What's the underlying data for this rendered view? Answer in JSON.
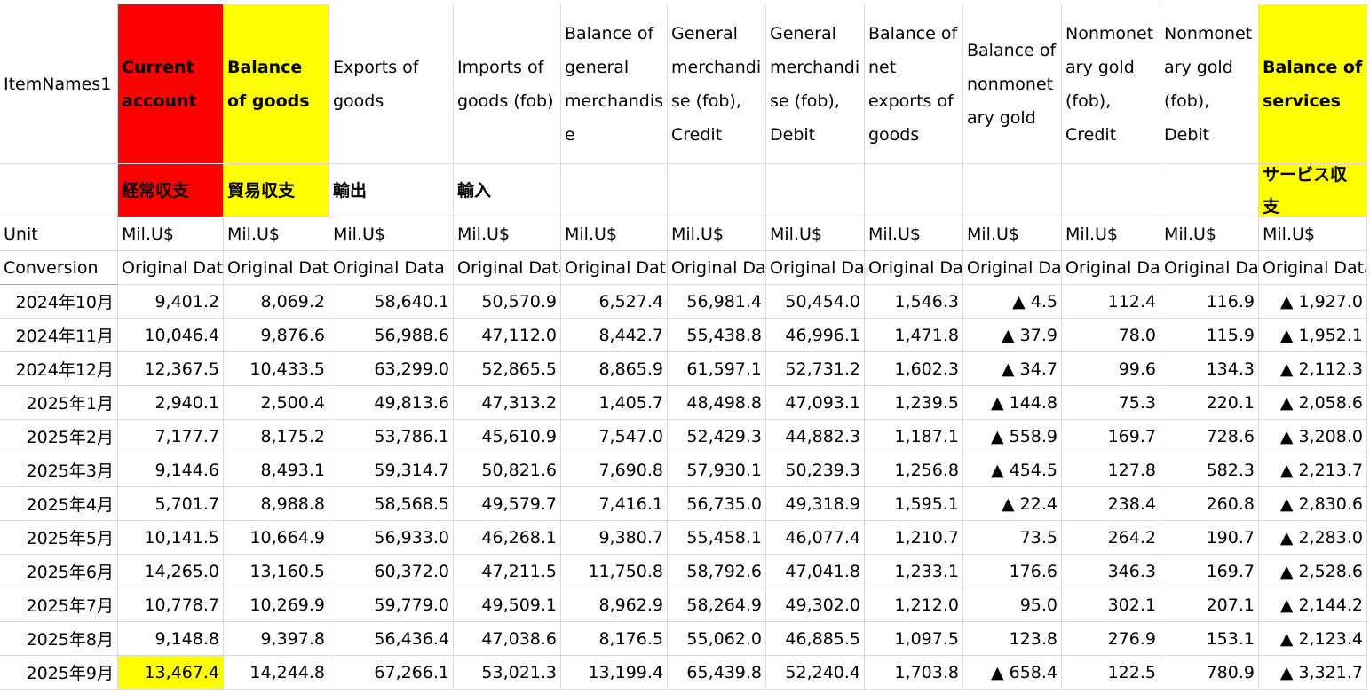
{
  "sheet": {
    "columns": [
      {
        "name": "ItemNames1",
        "unit": "Unit",
        "conversion": "Conversion"
      },
      {
        "name": "Current account",
        "ja": "経常収支",
        "unit": "Mil.U$",
        "conversion": "Original Data",
        "color": "#ff0000",
        "bold": true
      },
      {
        "name": "Balance of goods",
        "ja": "貿易収支",
        "unit": "Mil.U$",
        "conversion": "Original Data",
        "color": "#ffff00",
        "bold": true
      },
      {
        "name": "Exports of goods",
        "ja": "輸出",
        "unit": "Mil.U$",
        "conversion": "Original Data"
      },
      {
        "name": "Imports of goods (fob)",
        "ja": "輸入",
        "unit": "Mil.U$",
        "conversion": "Original Data"
      },
      {
        "name": "Balance of general merchandise",
        "unit": "Mil.U$",
        "conversion": "Original Data"
      },
      {
        "name": "General merchandise (fob), Credit",
        "unit": "Mil.U$",
        "conversion": "Original Data"
      },
      {
        "name": "General merchandise (fob), Debit",
        "unit": "Mil.U$",
        "conversion": "Original Data"
      },
      {
        "name": "Balance of net exports of goods",
        "unit": "Mil.U$",
        "conversion": "Original Data"
      },
      {
        "name": "Balance of nonmonetary gold",
        "unit": "Mil.U$",
        "conversion": "Original Data"
      },
      {
        "name": "Nonmonetary gold (fob), Credit",
        "unit": "Mil.U$",
        "conversion": "Original Data"
      },
      {
        "name": "Nonmonetary gold (fob), Debit",
        "unit": "Mil.U$",
        "conversion": "Original Data"
      },
      {
        "name": "Balance of services",
        "ja": "サービス収支",
        "unit": "Mil.U$",
        "conversion": "Original Data",
        "color": "#ffff00",
        "bold": true
      }
    ],
    "rows": [
      {
        "period": "2024年10月",
        "values": [
          "9,401.2",
          "8,069.2",
          "58,640.1",
          "50,570.9",
          "6,527.4",
          "56,981.4",
          "50,454.0",
          "1,546.3",
          "▲ 4.5",
          "112.4",
          "116.9",
          "▲ 1,927.0"
        ]
      },
      {
        "period": "2024年11月",
        "values": [
          "10,046.4",
          "9,876.6",
          "56,988.6",
          "47,112.0",
          "8,442.7",
          "55,438.8",
          "46,996.1",
          "1,471.8",
          "▲ 37.9",
          "78.0",
          "115.9",
          "▲ 1,952.1"
        ]
      },
      {
        "period": "2024年12月",
        "values": [
          "12,367.5",
          "10,433.5",
          "63,299.0",
          "52,865.5",
          "8,865.9",
          "61,597.1",
          "52,731.2",
          "1,602.3",
          "▲ 34.7",
          "99.6",
          "134.3",
          "▲ 2,112.3"
        ]
      },
      {
        "period": "2025年1月",
        "values": [
          "2,940.1",
          "2,500.4",
          "49,813.6",
          "47,313.2",
          "1,405.7",
          "48,498.8",
          "47,093.1",
          "1,239.5",
          "▲ 144.8",
          "75.3",
          "220.1",
          "▲ 2,058.6"
        ]
      },
      {
        "period": "2025年2月",
        "values": [
          "7,177.7",
          "8,175.2",
          "53,786.1",
          "45,610.9",
          "7,547.0",
          "52,429.3",
          "44,882.3",
          "1,187.1",
          "▲ 558.9",
          "169.7",
          "728.6",
          "▲ 3,208.0"
        ]
      },
      {
        "period": "2025年3月",
        "values": [
          "9,144.6",
          "8,493.1",
          "59,314.7",
          "50,821.6",
          "7,690.8",
          "57,930.1",
          "50,239.3",
          "1,256.8",
          "▲ 454.5",
          "127.8",
          "582.3",
          "▲ 2,213.7"
        ]
      },
      {
        "period": "2025年4月",
        "values": [
          "5,701.7",
          "8,988.8",
          "58,568.5",
          "49,579.7",
          "7,416.1",
          "56,735.0",
          "49,318.9",
          "1,595.1",
          "▲ 22.4",
          "238.4",
          "260.8",
          "▲ 2,830.6"
        ]
      },
      {
        "period": "2025年5月",
        "values": [
          "10,141.5",
          "10,664.9",
          "56,933.0",
          "46,268.1",
          "9,380.7",
          "55,458.1",
          "46,077.4",
          "1,210.7",
          "73.5",
          "264.2",
          "190.7",
          "▲ 2,283.0"
        ]
      },
      {
        "period": "2025年6月",
        "values": [
          "14,265.0",
          "13,160.5",
          "60,372.0",
          "47,211.5",
          "11,750.8",
          "58,792.6",
          "47,041.8",
          "1,233.1",
          "176.6",
          "346.3",
          "169.7",
          "▲ 2,528.6"
        ]
      },
      {
        "period": "2025年7月",
        "values": [
          "10,778.7",
          "10,269.9",
          "59,779.0",
          "49,509.1",
          "8,962.9",
          "58,264.9",
          "49,302.0",
          "1,212.0",
          "95.0",
          "302.1",
          "207.1",
          "▲ 2,144.2"
        ]
      },
      {
        "period": "2025年8月",
        "values": [
          "9,148.8",
          "9,397.8",
          "56,436.4",
          "47,038.6",
          "8,176.5",
          "55,062.0",
          "46,885.5",
          "1,097.5",
          "123.8",
          "276.9",
          "153.1",
          "▲ 2,123.4"
        ]
      },
      {
        "period": "2025年9月",
        "values": [
          "13,467.4",
          "14,244.8",
          "67,266.1",
          "53,021.3",
          "13,199.4",
          "65,439.8",
          "52,240.4",
          "1,703.8",
          "▲ 658.4",
          "122.5",
          "780.9",
          "▲ 3,321.7"
        ]
      }
    ],
    "highlighted_cells": [
      {
        "row": 11,
        "column": 1,
        "color": "#ffff00"
      }
    ]
  }
}
